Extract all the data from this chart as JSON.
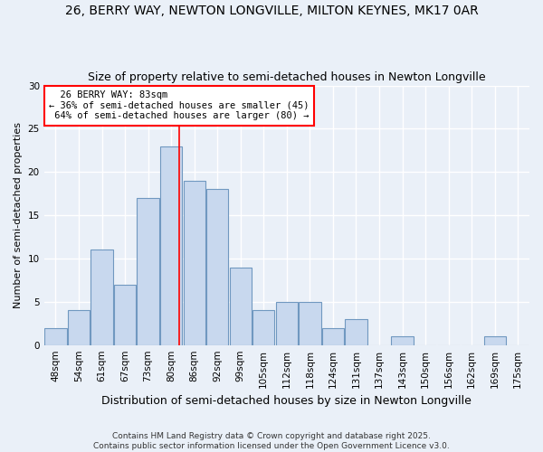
{
  "title": "26, BERRY WAY, NEWTON LONGVILLE, MILTON KEYNES, MK17 0AR",
  "subtitle": "Size of property relative to semi-detached houses in Newton Longville",
  "xlabel": "Distribution of semi-detached houses by size in Newton Longville",
  "ylabel": "Number of semi-detached properties",
  "footer": "Contains HM Land Registry data © Crown copyright and database right 2025.\nContains public sector information licensed under the Open Government Licence v3.0.",
  "bin_labels": [
    "48sqm",
    "54sqm",
    "61sqm",
    "67sqm",
    "73sqm",
    "80sqm",
    "86sqm",
    "92sqm",
    "99sqm",
    "105sqm",
    "112sqm",
    "118sqm",
    "124sqm",
    "131sqm",
    "137sqm",
    "143sqm",
    "150sqm",
    "156sqm",
    "162sqm",
    "169sqm",
    "175sqm"
  ],
  "bar_heights": [
    2,
    4,
    11,
    7,
    17,
    23,
    19,
    18,
    9,
    4,
    5,
    5,
    2,
    3,
    0,
    1,
    0,
    0,
    0,
    1,
    0
  ],
  "bar_color": "#c8d8ee",
  "bar_edge_color": "#7098c0",
  "property_label": "26 BERRY WAY: 83sqm",
  "pct_smaller": 36,
  "pct_larger": 64,
  "n_smaller": 45,
  "n_larger": 80,
  "vline_x": 5.35,
  "vline_color": "red",
  "ylim": [
    0,
    30
  ],
  "yticks": [
    0,
    5,
    10,
    15,
    20,
    25,
    30
  ],
  "background_color": "#eaf0f8",
  "plot_bg_color": "#eaf0f8",
  "grid_color": "white",
  "title_fontsize": 10,
  "subtitle_fontsize": 9,
  "xlabel_fontsize": 9,
  "ylabel_fontsize": 8,
  "tick_fontsize": 7.5,
  "annotation_fontsize": 7.5,
  "footer_fontsize": 6.5
}
